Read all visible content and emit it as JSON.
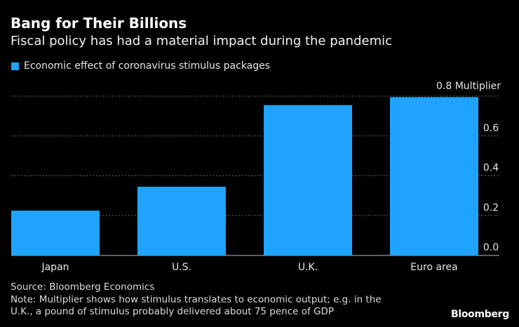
{
  "colors": {
    "bar": "#1fa3ff",
    "background": "#000000",
    "grid": "#8a8a8a",
    "text": "#ffffff"
  },
  "chart_data": {
    "type": "bar",
    "title": "Bang for Their Billions",
    "subtitle": "Fiscal policy has had a material impact during the pandemic",
    "legend": [
      "Economic effect of coronavirus stimulus packages"
    ],
    "categories": [
      "Japan",
      "U.S.",
      "U.K.",
      "Euro area"
    ],
    "series": [
      {
        "name": "Economic effect of coronavirus stimulus packages",
        "values": [
          0.225,
          0.345,
          0.755,
          0.795
        ]
      }
    ],
    "ylim": [
      0,
      0.8
    ],
    "yticks": [
      0.0,
      0.2,
      0.4,
      0.6,
      0.8
    ],
    "ytick_labels": [
      "0.0",
      "0.2",
      "0.4",
      "0.6",
      "0.8 Multiplier"
    ],
    "y_axis_position": "right",
    "grid": true,
    "xlabel": "",
    "ylabel": "Multiplier"
  },
  "footer": {
    "source": "Source: Bloomberg Economics",
    "note_line1": "Note: Multiplier shows how stimulus translates to economic output; e.g. in the",
    "note_line2": "U.K., a pound of stimulus probably delivered about 75 pence of GDP",
    "brand": "Bloomberg"
  }
}
